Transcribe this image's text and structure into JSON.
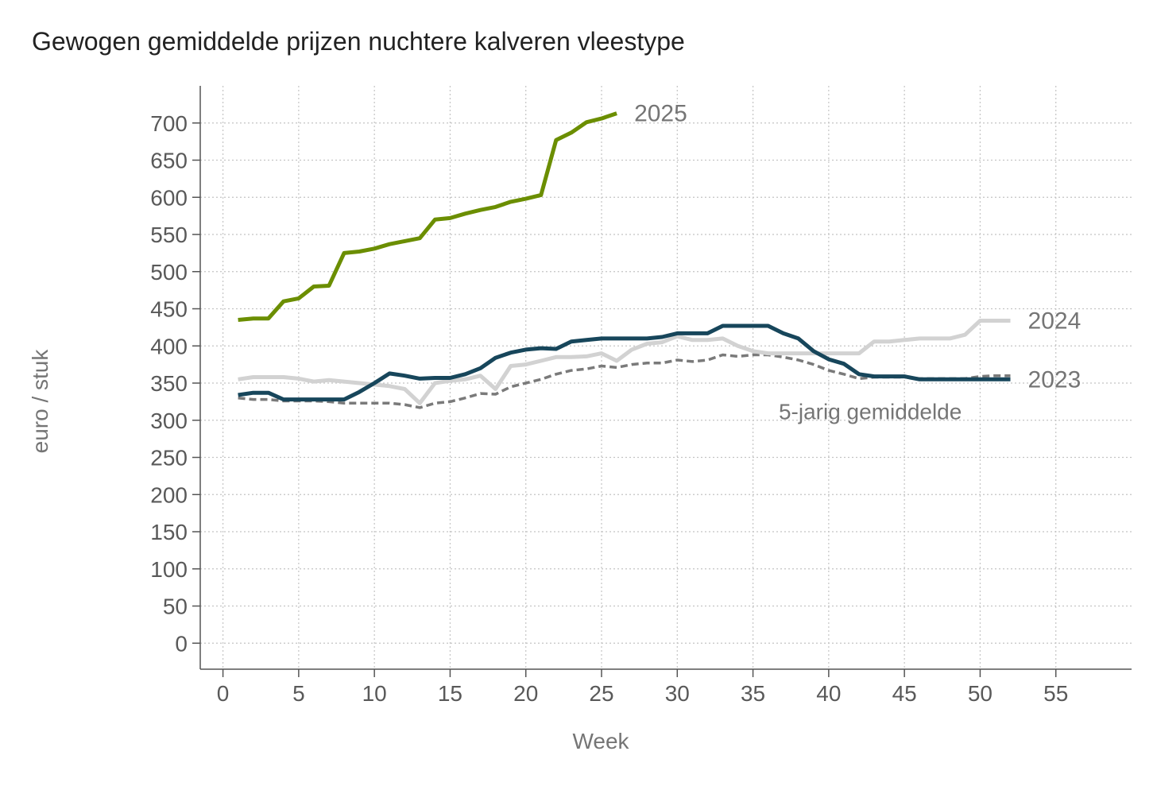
{
  "title": "Gewogen gemiddelde prijzen nuchtere kalveren vleestype",
  "chart_data": {
    "type": "line",
    "title": "Gewogen gemiddelde prijzen nuchtere kalveren vleestype",
    "xlabel": "Week",
    "ylabel": "euro / stuk",
    "xlim": [
      -1.5,
      60
    ],
    "ylim": [
      -35,
      750
    ],
    "x_ticks": [
      0,
      5,
      10,
      15,
      20,
      25,
      30,
      35,
      40,
      45,
      50,
      55
    ],
    "y_ticks": [
      0,
      50,
      100,
      150,
      200,
      250,
      300,
      350,
      400,
      450,
      500,
      550,
      600,
      650,
      700
    ],
    "grid": true,
    "legend": "direct labels at line ends",
    "average_label": "5-jarig gemiddelde",
    "series": [
      {
        "name": "5-jarig gemiddelde",
        "color": "#7a7a7a",
        "dashed": true,
        "x": [
          1,
          2,
          3,
          4,
          5,
          6,
          7,
          8,
          9,
          10,
          11,
          12,
          13,
          14,
          15,
          16,
          17,
          18,
          19,
          20,
          21,
          22,
          23,
          24,
          25,
          26,
          27,
          28,
          29,
          30,
          31,
          32,
          33,
          34,
          35,
          36,
          37,
          38,
          39,
          40,
          41,
          42,
          43,
          44,
          45,
          46,
          47,
          48,
          49,
          50,
          51,
          52
        ],
        "values": [
          330,
          328,
          328,
          326,
          326,
          326,
          325,
          323,
          323,
          323,
          323,
          321,
          317,
          323,
          325,
          330,
          336,
          335,
          345,
          350,
          355,
          362,
          367,
          369,
          373,
          371,
          375,
          377,
          377,
          381,
          379,
          381,
          388,
          386,
          388,
          388,
          385,
          381,
          375,
          367,
          362,
          356,
          358,
          358,
          358,
          356,
          356,
          356,
          356,
          359,
          360,
          360
        ]
      },
      {
        "name": "2024",
        "color": "#d2d2d2",
        "dashed": false,
        "x": [
          1,
          2,
          3,
          4,
          5,
          6,
          7,
          8,
          9,
          10,
          11,
          12,
          13,
          14,
          15,
          16,
          17,
          18,
          19,
          20,
          21,
          22,
          23,
          24,
          25,
          26,
          27,
          28,
          29,
          30,
          31,
          32,
          33,
          34,
          35,
          36,
          37,
          38,
          39,
          40,
          41,
          42,
          43,
          44,
          45,
          46,
          47,
          48,
          49,
          50,
          51,
          52
        ],
        "values": [
          355,
          358,
          358,
          358,
          356,
          352,
          354,
          352,
          350,
          348,
          346,
          342,
          323,
          350,
          353,
          355,
          360,
          342,
          373,
          375,
          380,
          385,
          385,
          386,
          390,
          380,
          395,
          403,
          405,
          413,
          408,
          408,
          410,
          400,
          393,
          390,
          390,
          390,
          390,
          390,
          390,
          390,
          406,
          406,
          408,
          410,
          410,
          410,
          415,
          434,
          434,
          434
        ]
      },
      {
        "name": "2023",
        "color": "#17465b",
        "dashed": false,
        "x": [
          1,
          2,
          3,
          4,
          5,
          6,
          7,
          8,
          9,
          10,
          11,
          12,
          13,
          14,
          15,
          16,
          17,
          18,
          19,
          20,
          21,
          22,
          23,
          24,
          25,
          26,
          27,
          28,
          29,
          30,
          31,
          32,
          33,
          34,
          35,
          36,
          37,
          38,
          39,
          40,
          41,
          42,
          43,
          44,
          45,
          46,
          47,
          48,
          49,
          50,
          51,
          52
        ],
        "values": [
          334,
          337,
          337,
          328,
          328,
          328,
          328,
          328,
          338,
          350,
          363,
          360,
          356,
          357,
          357,
          362,
          370,
          384,
          391,
          395,
          397,
          396,
          406,
          408,
          410,
          410,
          410,
          410,
          412,
          417,
          417,
          417,
          427,
          427,
          427,
          427,
          417,
          410,
          393,
          382,
          376,
          362,
          359,
          359,
          359,
          355,
          355,
          355,
          355,
          355,
          355,
          355
        ]
      },
      {
        "name": "2025",
        "color": "#6b8e00",
        "dashed": false,
        "x": [
          1,
          2,
          3,
          4,
          5,
          6,
          7,
          8,
          9,
          10,
          11,
          12,
          13,
          14,
          15,
          16,
          17,
          18,
          19,
          20,
          21,
          22,
          23,
          24,
          25,
          26
        ],
        "values": [
          435,
          437,
          437,
          460,
          464,
          480,
          481,
          525,
          527,
          531,
          537,
          541,
          545,
          570,
          572,
          578,
          583,
          587,
          594,
          598,
          603,
          677,
          687,
          701,
          706,
          713
        ]
      }
    ]
  }
}
